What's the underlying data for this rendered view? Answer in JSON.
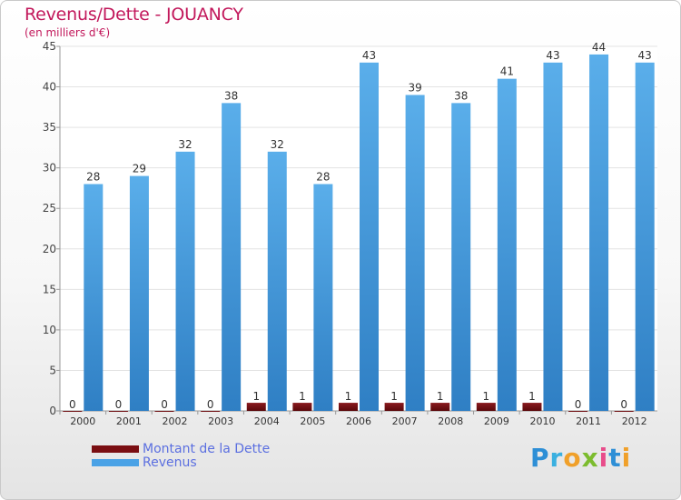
{
  "title": "Revenus/Dette - JOUANCY",
  "subtitle": "(en milliers d'€)",
  "logo_text": "Proxiti",
  "colors": {
    "dette": "#7a0e12",
    "revenus": "#4aa2e6",
    "title": "#c2185b",
    "legend_text": "#5b6fe0"
  },
  "legend": [
    {
      "label": "Montant de la Dette",
      "color": "#7a0e12"
    },
    {
      "label": "Revenus",
      "color": "#4aa2e6"
    }
  ],
  "chart_data": {
    "type": "bar",
    "title": "Revenus/Dette - JOUANCY",
    "ylabel": "(en milliers d'€)",
    "xlabel": "",
    "categories": [
      "2000",
      "2001",
      "2002",
      "2003",
      "2004",
      "2005",
      "2006",
      "2007",
      "2008",
      "2009",
      "2010",
      "2011",
      "2012"
    ],
    "series": [
      {
        "name": "Montant de la Dette",
        "values": [
          0,
          0,
          0,
          0,
          1,
          1,
          1,
          1,
          1,
          1,
          1,
          0,
          0
        ]
      },
      {
        "name": "Revenus",
        "values": [
          28,
          29,
          32,
          38,
          32,
          28,
          43,
          39,
          38,
          41,
          43,
          44,
          43
        ]
      }
    ],
    "ylim": [
      0,
      45
    ],
    "yticks": [
      0,
      5,
      10,
      15,
      20,
      25,
      30,
      35,
      40,
      45
    ],
    "grid": true,
    "legend_position": "bottom-left"
  }
}
